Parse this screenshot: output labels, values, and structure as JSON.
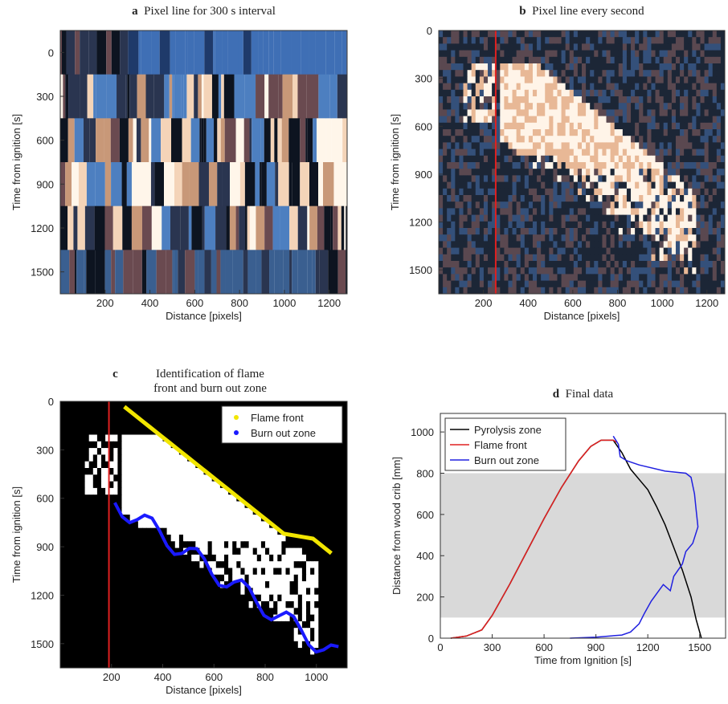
{
  "chart_data": [
    {
      "type": "image",
      "label": "a",
      "title": "Pixel line for 300 s interval",
      "xlabel": "Distance [pixels]",
      "ylabel": "Time from ignition [s]",
      "xlim": [
        0,
        1280
      ],
      "ylim": [
        -150,
        1650
      ],
      "xticks": [
        200,
        400,
        600,
        800,
        1000,
        1200
      ],
      "yticks": [
        0,
        300,
        600,
        900,
        1200,
        1500
      ],
      "y_inverted": true,
      "style": "interval"
    },
    {
      "type": "image",
      "label": "b",
      "title": "Pixel line every second",
      "xlabel": "Distance [pixels]",
      "ylabel": "Time from ignition [s]",
      "xlim": [
        0,
        1280
      ],
      "ylim": [
        0,
        1650
      ],
      "xticks": [
        200,
        400,
        600,
        800,
        1000,
        1200
      ],
      "yticks": [
        0,
        300,
        600,
        900,
        1200,
        1500
      ],
      "y_inverted": true,
      "style": "second",
      "vline": {
        "x": 255,
        "color": "#e02020"
      }
    },
    {
      "type": "image",
      "label": "c",
      "title": [
        "Identification of flame",
        "front and burn out zone"
      ],
      "xlabel": "Distance [pixels]",
      "ylabel": "Time from ignition [s]",
      "xlim": [
        0,
        1120
      ],
      "ylim": [
        0,
        1650
      ],
      "xticks": [
        200,
        400,
        600,
        800,
        1000
      ],
      "yticks": [
        0,
        300,
        600,
        900,
        1200,
        1500
      ],
      "y_inverted": true,
      "style": "binary",
      "vline": {
        "x": 190,
        "color": "#e02020"
      },
      "legend": "upper right",
      "series": [
        {
          "name": "Flame front",
          "color": "#f2e600"
        },
        {
          "name": "Burn out zone",
          "color": "#1a1aff"
        }
      ]
    },
    {
      "type": "line",
      "label": "d",
      "title": "Final data",
      "xlabel": "Time from Ignition [s]",
      "ylabel": "Distance from wood crib [mm]",
      "xlim": [
        0,
        1650
      ],
      "ylim": [
        0,
        1090
      ],
      "xticks": [
        0,
        300,
        600,
        900,
        1200,
        1500
      ],
      "yticks": [
        0,
        200,
        400,
        600,
        800,
        1000
      ],
      "band": [
        100,
        800
      ],
      "band_color": "#d9d9d9",
      "legend": "upper left",
      "series": [
        {
          "name": "Pyrolysis zone",
          "color": "#000000",
          "x": [
            60,
            150,
            240,
            300,
            400,
            500,
            600,
            700,
            800,
            870,
            930,
            1000,
            1050,
            1100,
            1150,
            1200,
            1250,
            1300,
            1350,
            1400,
            1450,
            1480,
            1510
          ],
          "values": [
            0,
            10,
            40,
            110,
            260,
            420,
            580,
            730,
            860,
            930,
            960,
            960,
            900,
            820,
            770,
            720,
            640,
            550,
            440,
            330,
            200,
            90,
            0
          ]
        },
        {
          "name": "Flame front",
          "color": "#e02020",
          "x": [
            60,
            150,
            240,
            300,
            400,
            500,
            600,
            700,
            800,
            870,
            930,
            1000,
            1020
          ],
          "values": [
            0,
            10,
            40,
            110,
            260,
            420,
            580,
            730,
            860,
            930,
            960,
            960,
            950
          ]
        },
        {
          "name": "Burn out zone",
          "color": "#2020e0",
          "x": [
            1000,
            1030,
            1040,
            1080,
            1150,
            1300,
            1420,
            1450,
            1470,
            1480,
            1490,
            1460,
            1420,
            1400,
            1350,
            1330,
            1290,
            1220,
            1180,
            1150,
            1100,
            1050,
            900,
            750
          ],
          "values": [
            980,
            940,
            880,
            860,
            840,
            810,
            800,
            780,
            700,
            620,
            540,
            460,
            420,
            360,
            300,
            230,
            260,
            180,
            120,
            70,
            30,
            15,
            5,
            0
          ]
        }
      ]
    }
  ]
}
